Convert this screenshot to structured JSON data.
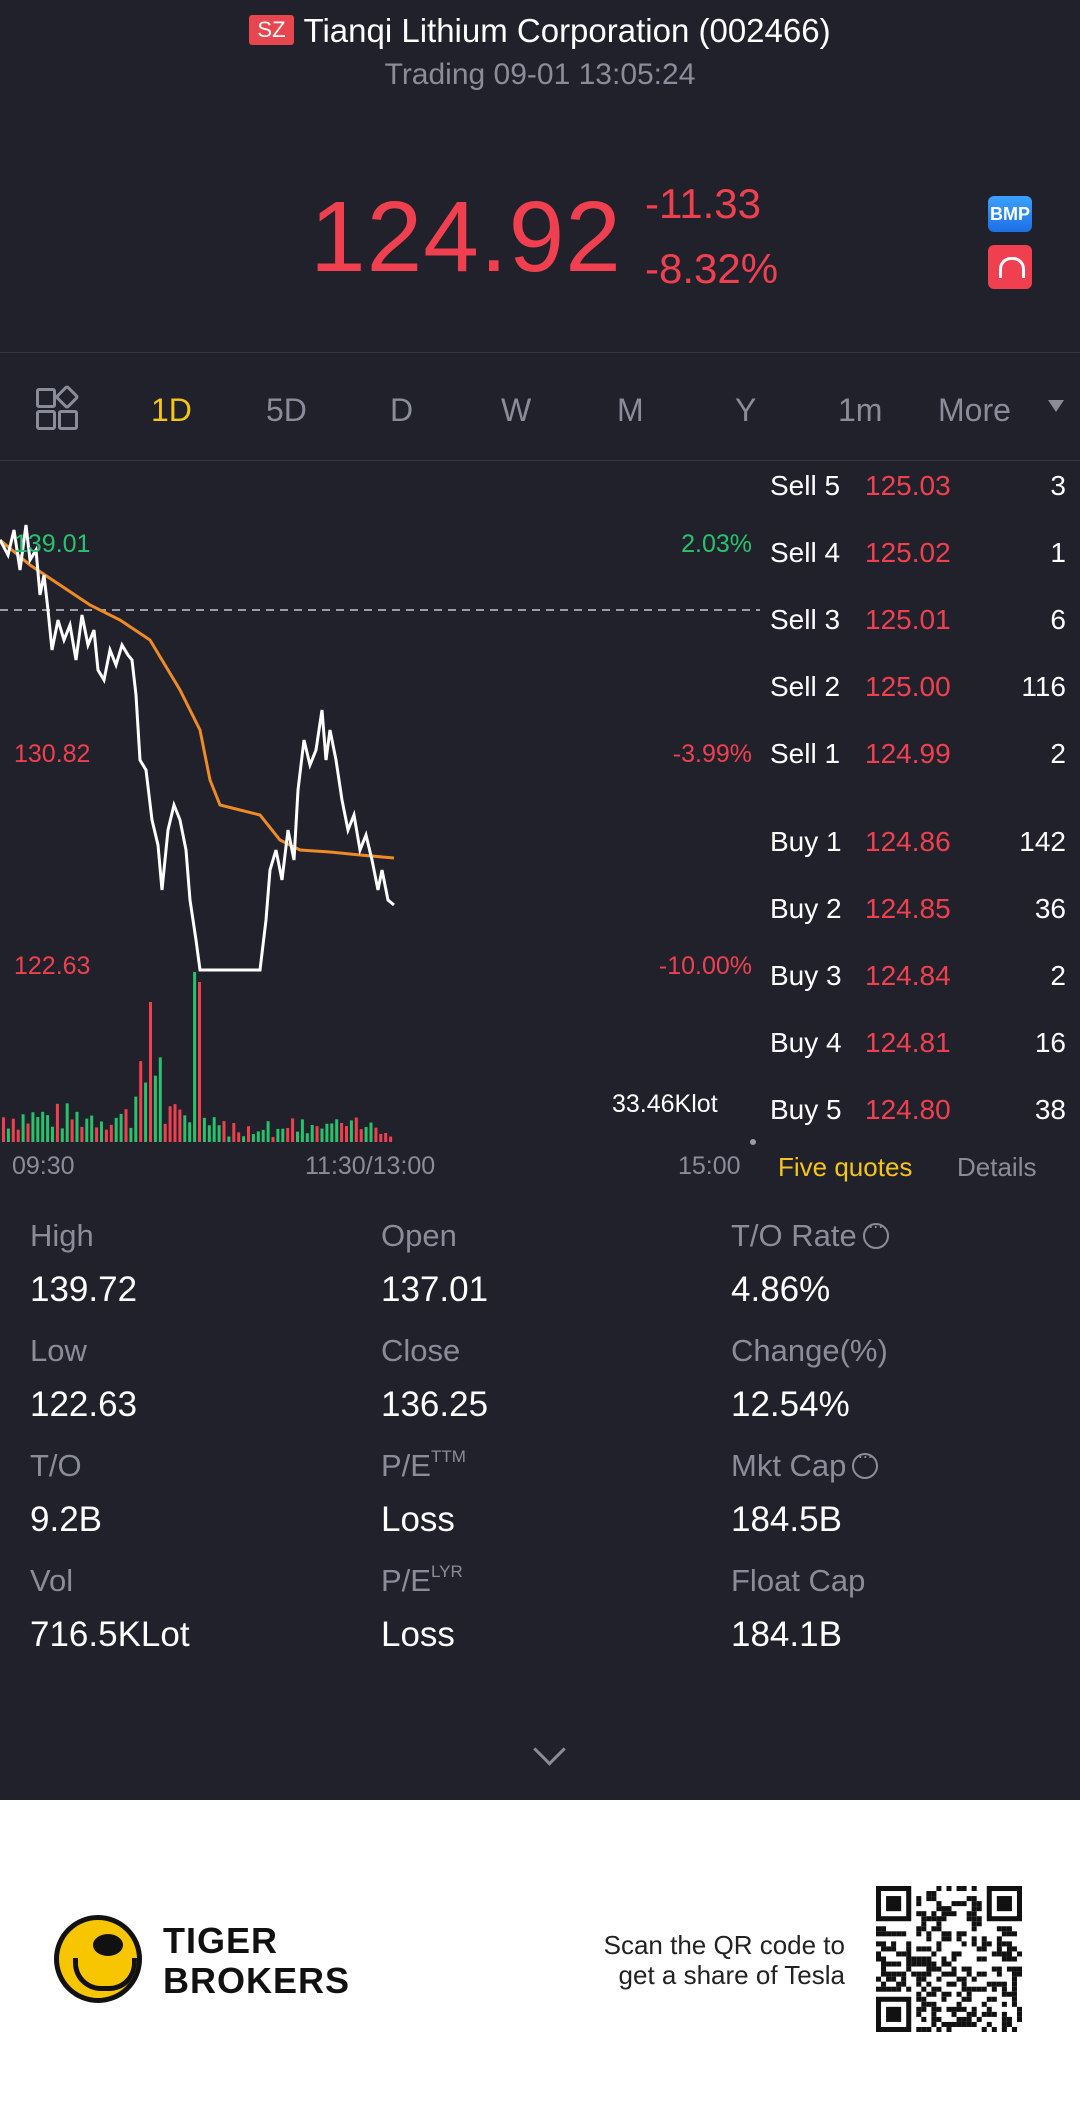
{
  "header": {
    "exchange_badge": "SZ",
    "title": "Tianqi Lithium Corporation (002466)",
    "status": "Trading 09-01 13:05:24"
  },
  "quote": {
    "price": "124.92",
    "change": "-11.33",
    "change_pct": "-8.32%",
    "bmp_label": "BMP"
  },
  "tabs": [
    {
      "label": "1D",
      "active": true
    },
    {
      "label": "5D"
    },
    {
      "label": "D"
    },
    {
      "label": "W"
    },
    {
      "label": "M"
    },
    {
      "label": "Y"
    },
    {
      "label": "1m"
    },
    {
      "label": "More"
    }
  ],
  "chart_labels": {
    "price_high": "139.01",
    "price_mid": "130.82",
    "price_low": "122.63",
    "pct_high": "2.03%",
    "pct_mid": "-3.99%",
    "pct_low": "-10.00%",
    "volume": "33.46Klot",
    "time_start": "09:30",
    "time_mid": "11:30/13:00",
    "time_end": "15:00"
  },
  "order_book": {
    "sell": [
      {
        "side": "Sell 5",
        "price": "125.03",
        "qty": "3"
      },
      {
        "side": "Sell 4",
        "price": "125.02",
        "qty": "1"
      },
      {
        "side": "Sell 3",
        "price": "125.01",
        "qty": "6"
      },
      {
        "side": "Sell 2",
        "price": "125.00",
        "qty": "116"
      },
      {
        "side": "Sell 1",
        "price": "124.99",
        "qty": "2"
      }
    ],
    "buy": [
      {
        "side": "Buy 1",
        "price": "124.86",
        "qty": "142"
      },
      {
        "side": "Buy 2",
        "price": "124.85",
        "qty": "36"
      },
      {
        "side": "Buy 3",
        "price": "124.84",
        "qty": "2"
      },
      {
        "side": "Buy 4",
        "price": "124.81",
        "qty": "16"
      },
      {
        "side": "Buy 5",
        "price": "124.80",
        "qty": "38"
      }
    ],
    "tab_five_quotes": "Five quotes",
    "tab_details": "Details"
  },
  "stats": {
    "high_label": "High",
    "high": "139.72",
    "open_label": "Open",
    "open": "137.01",
    "to_rate_label": "T/O Rate",
    "to_rate": "4.86%",
    "low_label": "Low",
    "low": "122.63",
    "close_label": "Close",
    "close": "136.25",
    "change_label": "Change(%)",
    "change": "12.54%",
    "to_label": "T/O",
    "to": "9.2B",
    "pe_ttm_label": "P/E",
    "pe_ttm_sup": "TTM",
    "pe_ttm": "Loss",
    "mkt_cap_label": "Mkt Cap",
    "mkt_cap": "184.5B",
    "vol_label": "Vol",
    "vol": "716.5KLot",
    "pe_lyr_label": "P/E",
    "pe_lyr_sup": "LYR",
    "pe_lyr": "Loss",
    "float_cap_label": "Float Cap",
    "float_cap": "184.1B"
  },
  "footer": {
    "brand_line1": "TIGER",
    "brand_line2": "BROKERS",
    "promo_line1": "Scan the QR code to",
    "promo_line2": "get a share of Tesla"
  },
  "colors": {
    "background": "#20212b",
    "down_red": "#f0404f",
    "up_green": "#27c26c",
    "accent_yellow": "#f5c518",
    "muted": "#8a8d99",
    "avg_line_orange": "#f08a24"
  }
}
